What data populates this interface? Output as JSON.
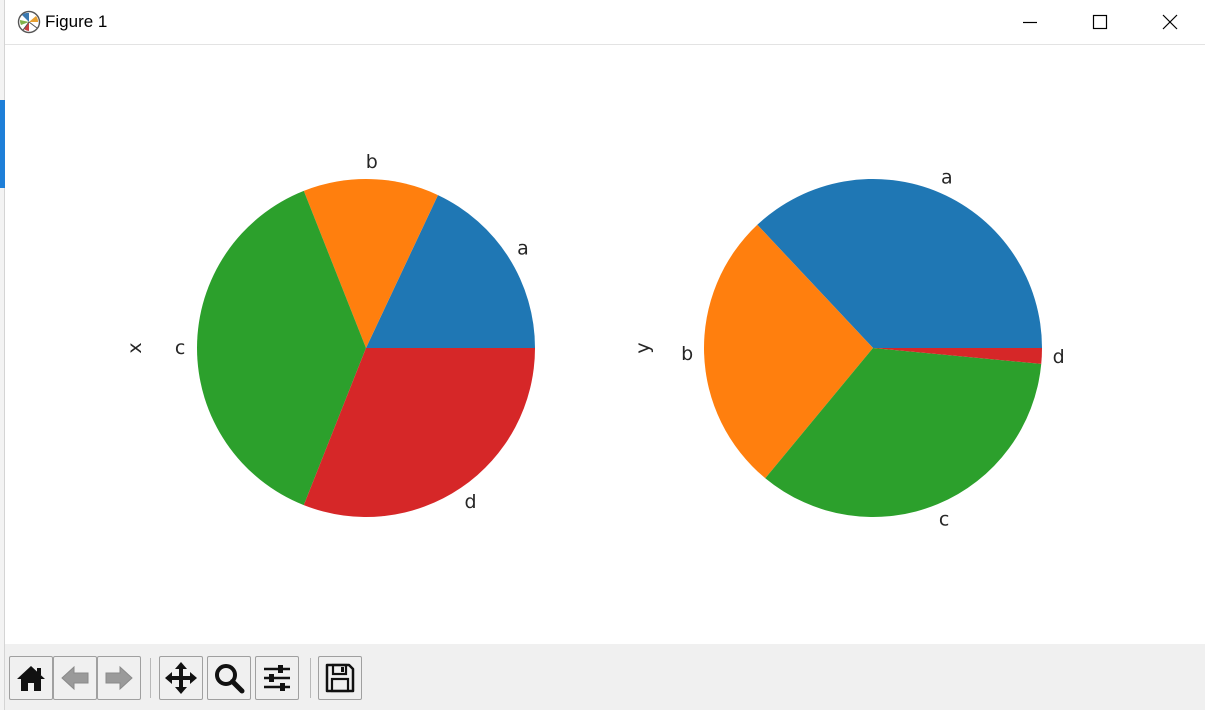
{
  "window": {
    "title": "Figure 1",
    "app_icon": "matplotlib-icon",
    "controls": [
      "minimize-icon",
      "maximize-icon",
      "close-icon"
    ]
  },
  "toolbar": {
    "buttons": [
      {
        "name": "home-button",
        "icon": "home-icon"
      },
      {
        "name": "back-button",
        "icon": "arrow-left-icon"
      },
      {
        "name": "forward-button",
        "icon": "arrow-right-icon"
      },
      {
        "name": "pan-button",
        "icon": "move-icon"
      },
      {
        "name": "zoom-button",
        "icon": "magnifier-icon"
      },
      {
        "name": "subplots-button",
        "icon": "sliders-icon"
      },
      {
        "name": "save-button",
        "icon": "floppy-icon"
      }
    ]
  },
  "chart_data": [
    {
      "type": "pie",
      "ylabel": "x",
      "categories": [
        "a",
        "b",
        "c",
        "d"
      ],
      "values": [
        18,
        13,
        38,
        31
      ],
      "colors": [
        "#1f77b4",
        "#ff7f0e",
        "#2ca02c",
        "#d62728"
      ],
      "startangle": 0,
      "direction": "counterclockwise"
    },
    {
      "type": "pie",
      "ylabel": "y",
      "categories": [
        "a",
        "b",
        "c",
        "d"
      ],
      "values": [
        37,
        27,
        34.5,
        1.5
      ],
      "colors": [
        "#1f77b4",
        "#ff7f0e",
        "#2ca02c",
        "#d62728"
      ],
      "startangle": 0,
      "direction": "counterclockwise"
    }
  ]
}
